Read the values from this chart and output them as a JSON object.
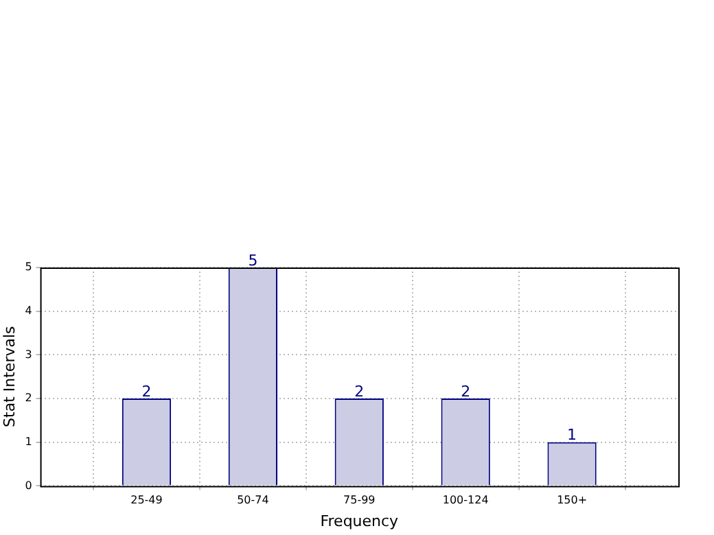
{
  "chart_data": {
    "type": "bar",
    "xlabel": "Frequency",
    "ylabel": "Stat Intervals",
    "categories": [
      "25-49",
      "50-74",
      "75-99",
      "100-124",
      "150+"
    ],
    "values": [
      2,
      5,
      2,
      2,
      1
    ],
    "color": "#ccccE5",
    "ylim": [
      0,
      5
    ],
    "yticks": [
      0,
      1,
      2,
      3,
      4,
      5
    ],
    "grid": true,
    "data_labels": true,
    "legend": false
  }
}
